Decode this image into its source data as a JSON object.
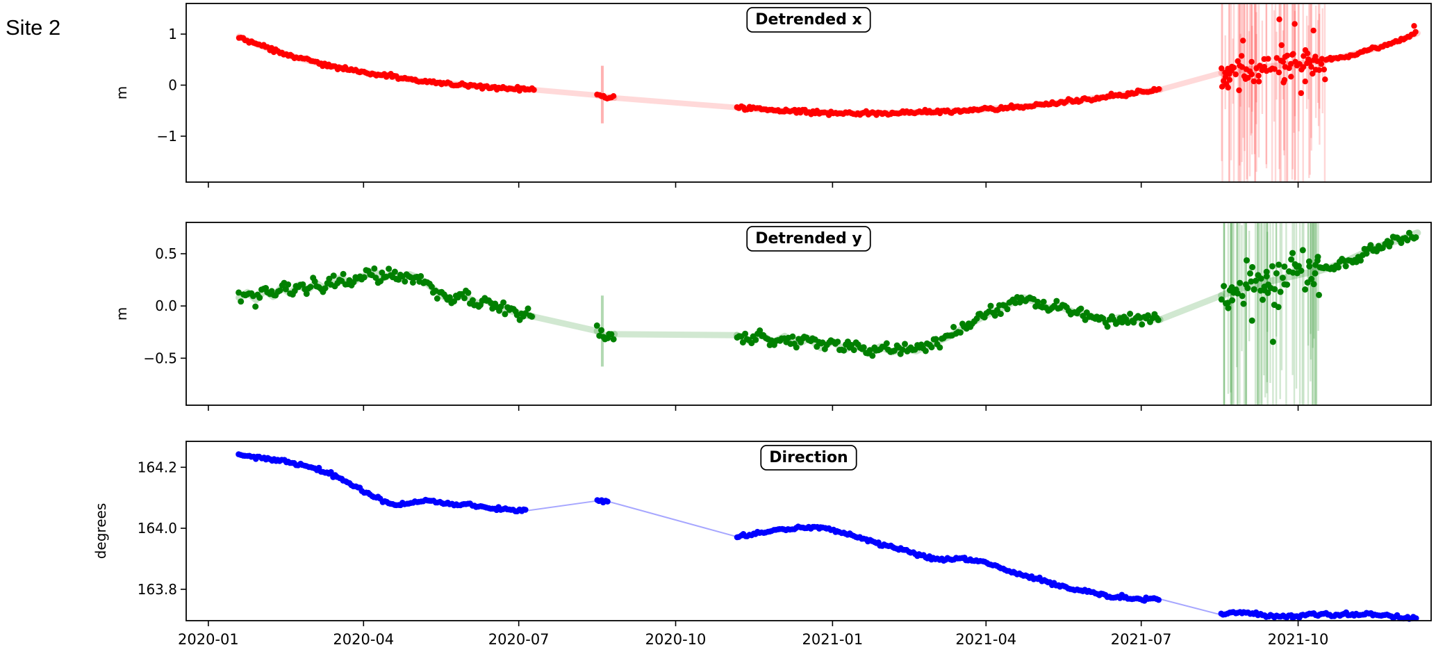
{
  "site_label": "Site 2",
  "x_axis": {
    "xlim_days": [
      -13,
      717
    ],
    "epoch": "2020-01-01",
    "tick_days": [
      0,
      91,
      182,
      274,
      366,
      456,
      547,
      639
    ],
    "tick_labels": [
      "2020-01",
      "2020-04",
      "2020-07",
      "2020-10",
      "2021-01",
      "2021-04",
      "2021-07",
      "2021-10"
    ]
  },
  "chart_data": [
    {
      "type": "scatter",
      "title": "Detrended x",
      "ylabel": "m",
      "color": "#ff0000",
      "ylim": [
        -1.9,
        1.6
      ],
      "yticks": [
        1,
        0,
        -1
      ],
      "ytick_labels": [
        "1",
        "0",
        "−1"
      ],
      "noise_sigma": 0.032,
      "marker_radius": 4.2,
      "band_width": 9,
      "band_alpha": 0.18,
      "connector_width": 8,
      "connector_alpha": 0.15,
      "spike": {
        "x": 231,
        "y_low": -0.75,
        "y_high": 0.38
      },
      "noisy_region": {
        "x_start": 594,
        "x_end": 655,
        "noise_sigma": 0.17,
        "bar_half_height": 2.4,
        "n_bars": 70,
        "bar_alpha": 0.16,
        "n_outliers": 26,
        "outlier_sigma": 0.5
      },
      "extra_points": [
        [
          707,
          1.16
        ],
        [
          628,
          1.29
        ],
        [
          637,
          1.2
        ],
        [
          648,
          1.07
        ],
        [
          616,
          0.07
        ],
        [
          631,
          0.1
        ]
      ],
      "segments": [
        [
          [
            18,
            0.95
          ],
          [
            24,
            0.86
          ],
          [
            30,
            0.78
          ],
          [
            36,
            0.71
          ],
          [
            42,
            0.65
          ],
          [
            48,
            0.58
          ],
          [
            54,
            0.52
          ],
          [
            60,
            0.47
          ],
          [
            66,
            0.42
          ],
          [
            72,
            0.37
          ],
          [
            78,
            0.33
          ],
          [
            84,
            0.3
          ],
          [
            90,
            0.26
          ],
          [
            96,
            0.22
          ],
          [
            102,
            0.19
          ],
          [
            108,
            0.16
          ],
          [
            114,
            0.13
          ],
          [
            120,
            0.1
          ],
          [
            126,
            0.07
          ],
          [
            132,
            0.05
          ],
          [
            138,
            0.03
          ],
          [
            144,
            0.02
          ],
          [
            150,
            0.0
          ],
          [
            156,
            -0.02
          ],
          [
            162,
            -0.03
          ],
          [
            168,
            -0.05
          ],
          [
            174,
            -0.06
          ],
          [
            180,
            -0.07
          ],
          [
            186,
            -0.08
          ],
          [
            191,
            -0.09
          ]
        ],
        [
          [
            228,
            -0.2
          ],
          [
            233,
            -0.23
          ],
          [
            238,
            -0.25
          ]
        ],
        [
          [
            310,
            -0.44
          ],
          [
            322,
            -0.47
          ],
          [
            334,
            -0.5
          ],
          [
            348,
            -0.52
          ],
          [
            362,
            -0.54
          ],
          [
            378,
            -0.55
          ],
          [
            394,
            -0.55
          ],
          [
            410,
            -0.54
          ],
          [
            426,
            -0.52
          ],
          [
            442,
            -0.5
          ],
          [
            456,
            -0.47
          ],
          [
            470,
            -0.44
          ],
          [
            484,
            -0.4
          ],
          [
            498,
            -0.35
          ],
          [
            512,
            -0.29
          ],
          [
            526,
            -0.23
          ],
          [
            540,
            -0.17
          ],
          [
            550,
            -0.12
          ],
          [
            558,
            -0.09
          ]
        ],
        [
          [
            594,
            0.24
          ],
          [
            602,
            0.28
          ],
          [
            610,
            0.31
          ],
          [
            618,
            0.35
          ],
          [
            626,
            0.38
          ],
          [
            634,
            0.41
          ],
          [
            642,
            0.44
          ],
          [
            650,
            0.46
          ],
          [
            658,
            0.5
          ],
          [
            666,
            0.56
          ],
          [
            674,
            0.63
          ],
          [
            682,
            0.7
          ],
          [
            690,
            0.78
          ],
          [
            698,
            0.87
          ],
          [
            704,
            0.95
          ],
          [
            709,
            1.02
          ]
        ]
      ]
    },
    {
      "type": "scatter",
      "title": "Detrended y",
      "ylabel": "m",
      "color": "#008000",
      "ylim": [
        -0.95,
        0.8
      ],
      "yticks": [
        0.5,
        0.0,
        -0.5
      ],
      "ytick_labels": [
        "0.5",
        "0.0",
        "−0.5"
      ],
      "noise_sigma": 0.05,
      "marker_radius": 4.5,
      "band_width": 10,
      "band_alpha": 0.22,
      "connector_width": 9,
      "connector_alpha": 0.18,
      "spike": {
        "x": 231,
        "y_low": -0.58,
        "y_high": 0.1
      },
      "noisy_region": {
        "x_start": 594,
        "x_end": 652,
        "noise_sigma": 0.14,
        "bar_half_height": 1.9,
        "n_bars": 60,
        "bar_alpha": 0.18,
        "n_outliers": 18,
        "outlier_sigma": 0.35
      },
      "extra_points": [
        [
          612,
          -0.14
        ],
        [
          598,
          -0.02
        ]
      ],
      "segments": [
        [
          [
            18,
            0.08
          ],
          [
            23,
            0.13
          ],
          [
            28,
            0.06
          ],
          [
            33,
            0.15
          ],
          [
            38,
            0.09
          ],
          [
            43,
            0.18
          ],
          [
            48,
            0.12
          ],
          [
            53,
            0.2
          ],
          [
            58,
            0.15
          ],
          [
            63,
            0.22
          ],
          [
            68,
            0.17
          ],
          [
            73,
            0.24
          ],
          [
            78,
            0.27
          ],
          [
            83,
            0.21
          ],
          [
            88,
            0.26
          ],
          [
            93,
            0.3
          ],
          [
            98,
            0.32
          ],
          [
            103,
            0.27
          ],
          [
            108,
            0.31
          ],
          [
            113,
            0.26
          ],
          [
            118,
            0.3
          ],
          [
            123,
            0.27
          ],
          [
            128,
            0.22
          ],
          [
            133,
            0.15
          ],
          [
            138,
            0.09
          ],
          [
            143,
            0.05
          ],
          [
            148,
            0.11
          ],
          [
            153,
            0.07
          ],
          [
            158,
            0.02
          ],
          [
            163,
            0.06
          ],
          [
            168,
            0.0
          ],
          [
            173,
            -0.03
          ],
          [
            178,
            -0.05
          ],
          [
            184,
            -0.08
          ],
          [
            190,
            -0.1
          ]
        ],
        [
          [
            228,
            -0.24
          ],
          [
            233,
            -0.29
          ],
          [
            238,
            -0.27
          ]
        ],
        [
          [
            310,
            -0.28
          ],
          [
            317,
            -0.33
          ],
          [
            324,
            -0.27
          ],
          [
            331,
            -0.35
          ],
          [
            338,
            -0.29
          ],
          [
            345,
            -0.37
          ],
          [
            352,
            -0.31
          ],
          [
            359,
            -0.4
          ],
          [
            366,
            -0.34
          ],
          [
            373,
            -0.42
          ],
          [
            380,
            -0.36
          ],
          [
            387,
            -0.45
          ],
          [
            394,
            -0.39
          ],
          [
            401,
            -0.44
          ],
          [
            408,
            -0.41
          ],
          [
            415,
            -0.43
          ],
          [
            422,
            -0.38
          ],
          [
            429,
            -0.33
          ],
          [
            436,
            -0.28
          ],
          [
            443,
            -0.21
          ],
          [
            450,
            -0.14
          ],
          [
            457,
            -0.08
          ],
          [
            464,
            -0.03
          ],
          [
            471,
            0.03
          ],
          [
            478,
            0.08
          ],
          [
            485,
            0.04
          ],
          [
            492,
            -0.02
          ],
          [
            499,
            0.0
          ],
          [
            506,
            -0.05
          ],
          [
            513,
            -0.08
          ],
          [
            520,
            -0.11
          ],
          [
            527,
            -0.14
          ],
          [
            534,
            -0.11
          ],
          [
            541,
            -0.14
          ],
          [
            548,
            -0.11
          ],
          [
            558,
            -0.13
          ]
        ],
        [
          [
            594,
            0.1
          ],
          [
            602,
            0.15
          ],
          [
            610,
            0.19
          ],
          [
            618,
            0.22
          ],
          [
            626,
            0.25
          ],
          [
            634,
            0.28
          ],
          [
            642,
            0.31
          ],
          [
            650,
            0.33
          ],
          [
            658,
            0.37
          ],
          [
            666,
            0.42
          ],
          [
            674,
            0.48
          ],
          [
            682,
            0.54
          ],
          [
            690,
            0.59
          ],
          [
            698,
            0.63
          ],
          [
            704,
            0.67
          ],
          [
            709,
            0.7
          ]
        ]
      ]
    },
    {
      "type": "scatter",
      "title": "Direction",
      "ylabel": "degrees",
      "color": "#0000ff",
      "ylim": [
        163.697,
        164.285
      ],
      "yticks": [
        164.2,
        164.0,
        163.8
      ],
      "ytick_labels": [
        "164.2",
        "164.0",
        "163.8"
      ],
      "noise_sigma": 0.005,
      "marker_radius": 4.3,
      "band_width": 3.5,
      "band_alpha": 0.3,
      "connector_width": 2,
      "connector_alpha": 0.35,
      "spike": null,
      "noisy_region": null,
      "extra_points": [],
      "segments": [
        [
          [
            18,
            164.24
          ],
          [
            26,
            164.235
          ],
          [
            34,
            164.228
          ],
          [
            42,
            164.22
          ],
          [
            50,
            164.212
          ],
          [
            58,
            164.203
          ],
          [
            66,
            164.19
          ],
          [
            74,
            164.172
          ],
          [
            82,
            164.15
          ],
          [
            90,
            164.125
          ],
          [
            98,
            164.1
          ],
          [
            104,
            164.085
          ],
          [
            110,
            164.078
          ],
          [
            116,
            164.08
          ],
          [
            122,
            164.086
          ],
          [
            128,
            164.09
          ],
          [
            134,
            164.086
          ],
          [
            140,
            164.08
          ],
          [
            146,
            164.077
          ],
          [
            152,
            164.08
          ],
          [
            158,
            164.074
          ],
          [
            164,
            164.068
          ],
          [
            170,
            164.063
          ],
          [
            178,
            164.06
          ],
          [
            186,
            164.057
          ]
        ],
        [
          [
            228,
            164.09
          ],
          [
            235,
            164.087
          ]
        ],
        [
          [
            310,
            163.972
          ],
          [
            317,
            163.979
          ],
          [
            324,
            163.986
          ],
          [
            331,
            163.992
          ],
          [
            338,
            163.997
          ],
          [
            345,
            164.0
          ],
          [
            352,
            164.002
          ],
          [
            359,
            164.0
          ],
          [
            366,
            163.993
          ],
          [
            373,
            163.984
          ],
          [
            380,
            163.972
          ],
          [
            387,
            163.96
          ],
          [
            394,
            163.949
          ],
          [
            401,
            163.938
          ],
          [
            408,
            163.927
          ],
          [
            415,
            163.916
          ],
          [
            422,
            163.906
          ],
          [
            429,
            163.899
          ],
          [
            436,
            163.9
          ],
          [
            443,
            163.902
          ],
          [
            450,
            163.896
          ],
          [
            457,
            163.885
          ],
          [
            464,
            163.872
          ],
          [
            471,
            163.858
          ],
          [
            478,
            163.846
          ],
          [
            485,
            163.835
          ],
          [
            492,
            163.824
          ],
          [
            499,
            163.813
          ],
          [
            506,
            163.802
          ],
          [
            513,
            163.793
          ],
          [
            520,
            163.785
          ],
          [
            527,
            163.779
          ],
          [
            534,
            163.774
          ],
          [
            541,
            163.771
          ],
          [
            548,
            163.769
          ],
          [
            558,
            163.768
          ]
        ],
        [
          [
            594,
            163.716
          ],
          [
            600,
            163.723
          ],
          [
            606,
            163.727
          ],
          [
            612,
            163.721
          ],
          [
            618,
            163.714
          ],
          [
            624,
            163.709
          ],
          [
            630,
            163.712
          ],
          [
            636,
            163.709
          ],
          [
            642,
            163.714
          ],
          [
            648,
            163.719
          ],
          [
            654,
            163.717
          ],
          [
            660,
            163.714
          ],
          [
            666,
            163.717
          ],
          [
            672,
            163.719
          ],
          [
            678,
            163.717
          ],
          [
            684,
            163.719
          ],
          [
            690,
            163.714
          ],
          [
            696,
            163.711
          ],
          [
            702,
            163.708
          ],
          [
            709,
            163.703
          ]
        ]
      ]
    }
  ]
}
